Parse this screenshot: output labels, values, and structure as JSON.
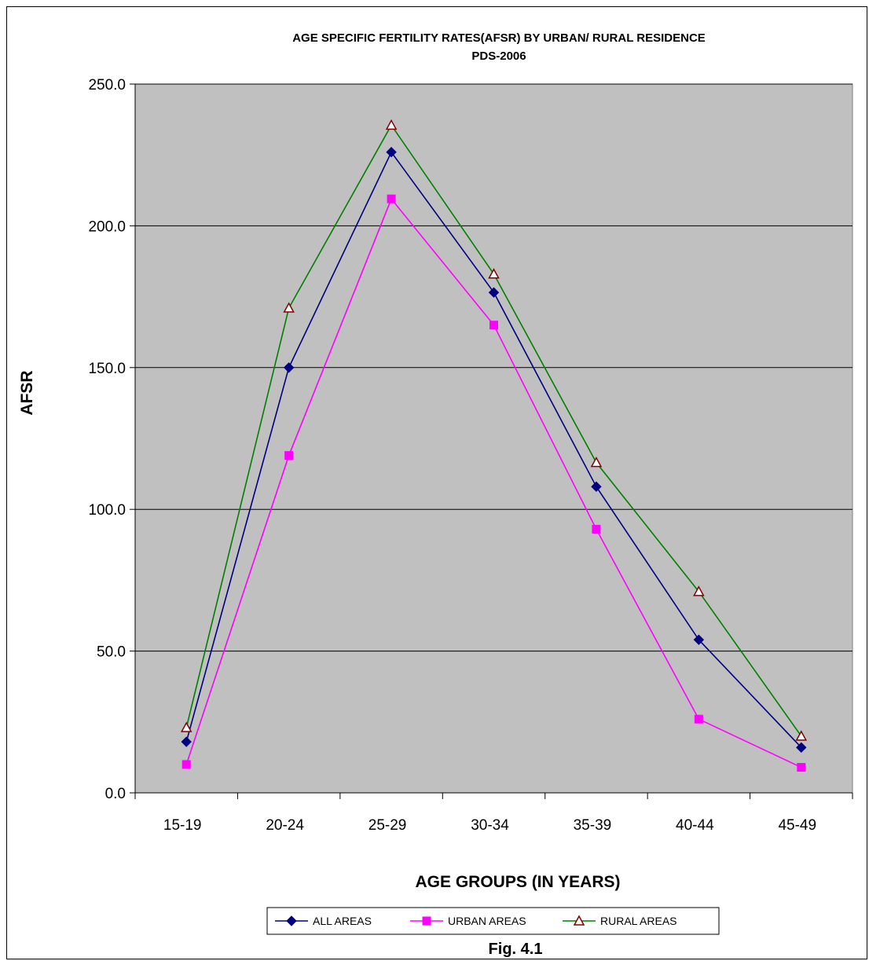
{
  "chart_data": {
    "type": "line",
    "title": "AGE SPECIFIC FERTILITY RATES(AFSR) BY URBAN/ RURAL RESIDENCE",
    "subtitle": "PDS-2006",
    "xlabel": "AGE GROUPS (IN YEARS)",
    "ylabel": "AFSR",
    "categories": [
      "15-19",
      "20-24",
      "25-29",
      "30-34",
      "35-39",
      "40-44",
      "45-49"
    ],
    "ylim": [
      0,
      250
    ],
    "yticks": [
      "0.0",
      "50.0",
      "100.0",
      "150.0",
      "200.0",
      "250.0"
    ],
    "grid": true,
    "legend_position": "bottom",
    "plot_background": "#c0c0c0",
    "series": [
      {
        "name": "ALL AREAS",
        "color": "#000080",
        "marker": "diamond",
        "values": [
          18,
          150,
          226,
          176.5,
          108,
          54,
          16
        ]
      },
      {
        "name": "URBAN AREAS",
        "color": "#ff00ff",
        "marker": "square",
        "values": [
          10,
          119,
          209.5,
          165,
          93,
          26,
          9
        ]
      },
      {
        "name": "RURAL AREAS",
        "color": "#008000",
        "marker_color": "#800000",
        "marker": "triangle",
        "values": [
          23,
          171,
          235.5,
          183,
          116.5,
          71,
          20
        ]
      }
    ],
    "caption": "Fig. 4.1"
  }
}
